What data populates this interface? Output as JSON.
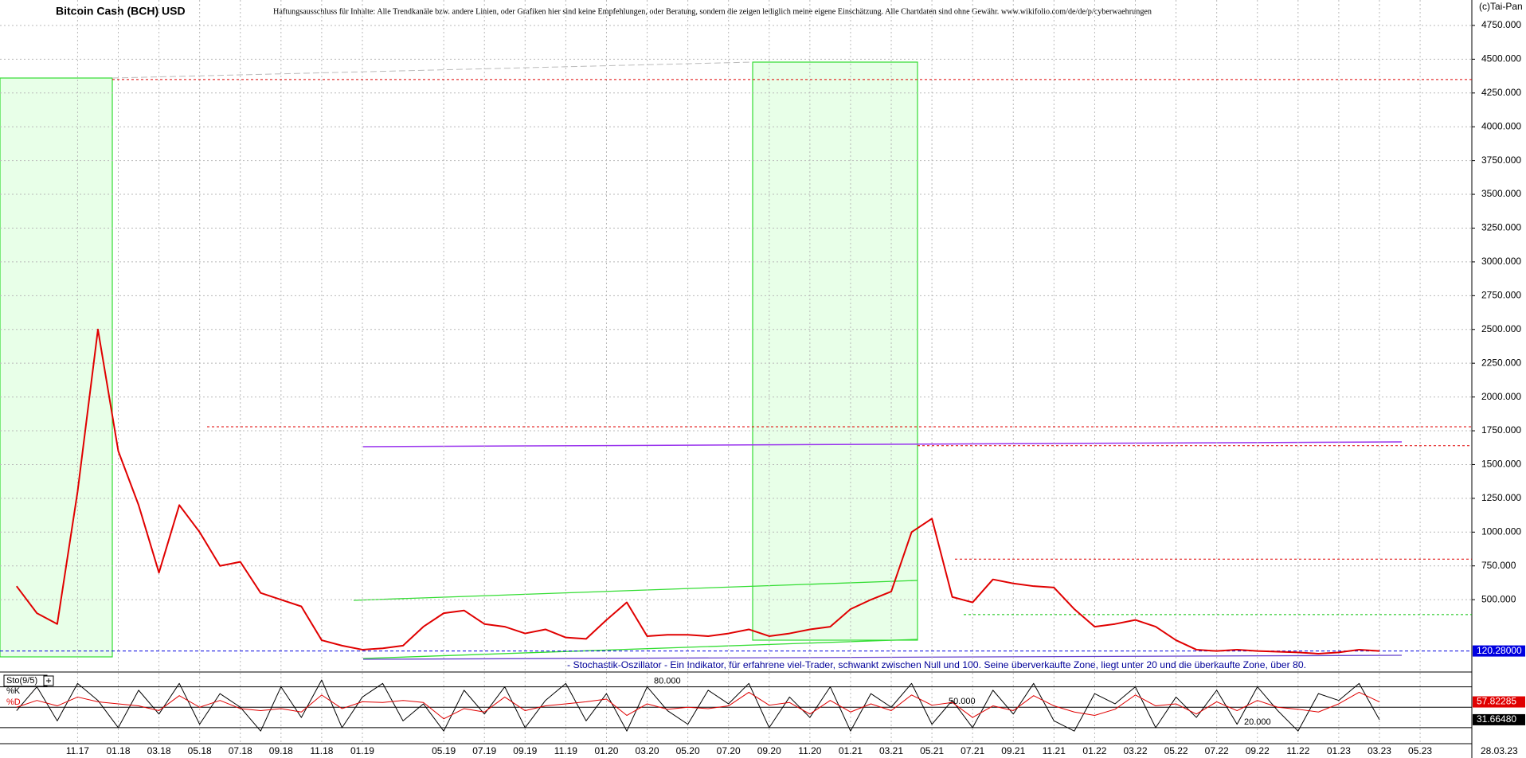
{
  "chart_data": [
    {
      "type": "line",
      "title": "Bitcoin Cash (BCH) USD",
      "subtitle": "Haftungsausschluss für Inhalte: Alle Trendkanäle bzw. andere Linien, oder Grafiken hier sind keine Empfehlungen, oder Beratung, sondern die zeigen lediglich meine eigene Einschätzung. Alle Chartdaten sind ohne Gewähr.  www.wikifolio.com/de/de/p/cyberwaehrungen",
      "source": "(c)Tai-Pan",
      "date": "28.03.23",
      "categories": [
        null,
        null,
        null,
        "11.17",
        null,
        "01.18",
        null,
        "03.18",
        null,
        "05.18",
        null,
        "07.18",
        null,
        "09.18",
        null,
        "11.18",
        null,
        "01.19",
        null,
        null,
        null,
        "05.19",
        null,
        "07.19",
        null,
        "09.19",
        null,
        "11.19",
        null,
        "01.20",
        null,
        "03.20",
        null,
        "05.20",
        null,
        "07.20",
        null,
        "09.20",
        null,
        "11.20",
        null,
        "01.21",
        null,
        "03.21",
        null,
        "05.21",
        null,
        "07.21",
        null,
        "09.21",
        null,
        "11.21",
        null,
        "01.22",
        null,
        "03.22",
        null,
        "05.22",
        null,
        "07.22",
        null,
        "09.22",
        null,
        "11.22",
        null,
        "01.23",
        null,
        "03.23",
        null,
        "05.23"
      ],
      "series": [
        {
          "name": "BCH",
          "color": "#e00000",
          "values": [
            600,
            400,
            320,
            1300,
            2500,
            1600,
            1200,
            700,
            1200,
            1000,
            750,
            780,
            550,
            500,
            450,
            200,
            160,
            130,
            140,
            160,
            300,
            400,
            420,
            320,
            300,
            250,
            280,
            220,
            210,
            350,
            480,
            230,
            240,
            240,
            230,
            250,
            280,
            230,
            250,
            280,
            300,
            430,
            500,
            560,
            1000,
            1100,
            520,
            480,
            650,
            620,
            600,
            590,
            430,
            300,
            320,
            350,
            300,
            200,
            130,
            120,
            130,
            120,
            115,
            110,
            100,
            110,
            130,
            120.28,
            null,
            null
          ]
        }
      ],
      "current_price": {
        "value": 120.28,
        "label": "120.28000",
        "color": "#0000e0"
      },
      "levels": [
        {
          "value": 4350,
          "color": "#e00000"
        },
        {
          "value": 1780,
          "color": "#e00000"
        },
        {
          "value": 1640,
          "color": "#e00000"
        },
        {
          "value": 800,
          "color": "#e00000"
        },
        {
          "value": 390,
          "color": "#00c000"
        }
      ],
      "ylim": [
        0,
        4950
      ],
      "yticks": [
        {
          "value": 500,
          "label": "500.000"
        },
        {
          "value": 750,
          "label": "750.000"
        },
        {
          "value": 1000,
          "label": "1000.000"
        },
        {
          "value": 1250,
          "label": "1250.000"
        },
        {
          "value": 1500,
          "label": "1500.000"
        },
        {
          "value": 1750,
          "label": "1750.000"
        },
        {
          "value": 2000,
          "label": "2000.000"
        },
        {
          "value": 2250,
          "label": "2250.000"
        },
        {
          "value": 2500,
          "label": "2500.000"
        },
        {
          "value": 2750,
          "label": "2750.000"
        },
        {
          "value": 3000,
          "label": "3000.000"
        },
        {
          "value": 3250,
          "label": "3250.000"
        },
        {
          "value": 3500,
          "label": "3500.000"
        },
        {
          "value": 3750,
          "label": "3750.000"
        },
        {
          "value": 4000,
          "label": "4000.000"
        },
        {
          "value": 4250,
          "label": "4250.000"
        },
        {
          "value": 4500,
          "label": "4500.000"
        },
        {
          "value": 4750,
          "label": "4750.000"
        }
      ],
      "grid": true
    },
    {
      "type": "line",
      "title": "Sto(9/5)",
      "annotation": "- Stochastik-Oszillator - Ein Indikator, für erfahrene viel-Trader, schwankt zwischen Null und 100. Seine überverkaufte Zone, liegt unter 20 und die überkaufte Zone, über 80.",
      "series": [
        {
          "name": "%K",
          "color": "#000000",
          "current_value": {
            "value": 31.6648,
            "label": "31.66480"
          },
          "values": [
            45,
            80,
            30,
            85,
            60,
            20,
            75,
            40,
            85,
            25,
            70,
            50,
            15,
            80,
            35,
            90,
            20,
            65,
            85,
            30,
            55,
            15,
            75,
            40,
            80,
            20,
            60,
            85,
            30,
            70,
            15,
            80,
            45,
            25,
            75,
            55,
            85,
            20,
            65,
            35,
            80,
            15,
            70,
            50,
            85,
            25,
            60,
            20,
            75,
            40,
            85,
            30,
            15,
            70,
            55,
            80,
            20,
            65,
            35,
            75,
            25,
            80,
            45,
            15,
            70,
            60,
            85,
            31.6648,
            null,
            null
          ]
        },
        {
          "name": "%D",
          "color": "#e00000",
          "current_value": {
            "value": 57.82285,
            "label": "57.82285"
          },
          "values": [
            50,
            60,
            52,
            65,
            58,
            55,
            52,
            45,
            67,
            50,
            60,
            48,
            45,
            48,
            43,
            68,
            48,
            58,
            57,
            60,
            57,
            33,
            48,
            43,
            65,
            45,
            52,
            55,
            58,
            62,
            38,
            55,
            47,
            50,
            48,
            52,
            72,
            53,
            57,
            40,
            60,
            43,
            55,
            45,
            68,
            53,
            57,
            35,
            52,
            45,
            67,
            52,
            43,
            38,
            47,
            68,
            52,
            55,
            40,
            58,
            45,
            60,
            50,
            47,
            43,
            55,
            72,
            57.82285,
            null,
            null
          ]
        }
      ],
      "ylim": [
        0,
        100
      ],
      "yticks": [
        {
          "value": 20,
          "label": "20.000"
        },
        {
          "value": 50,
          "label": "50.000"
        },
        {
          "value": 80,
          "label": "80.000"
        }
      ]
    }
  ]
}
